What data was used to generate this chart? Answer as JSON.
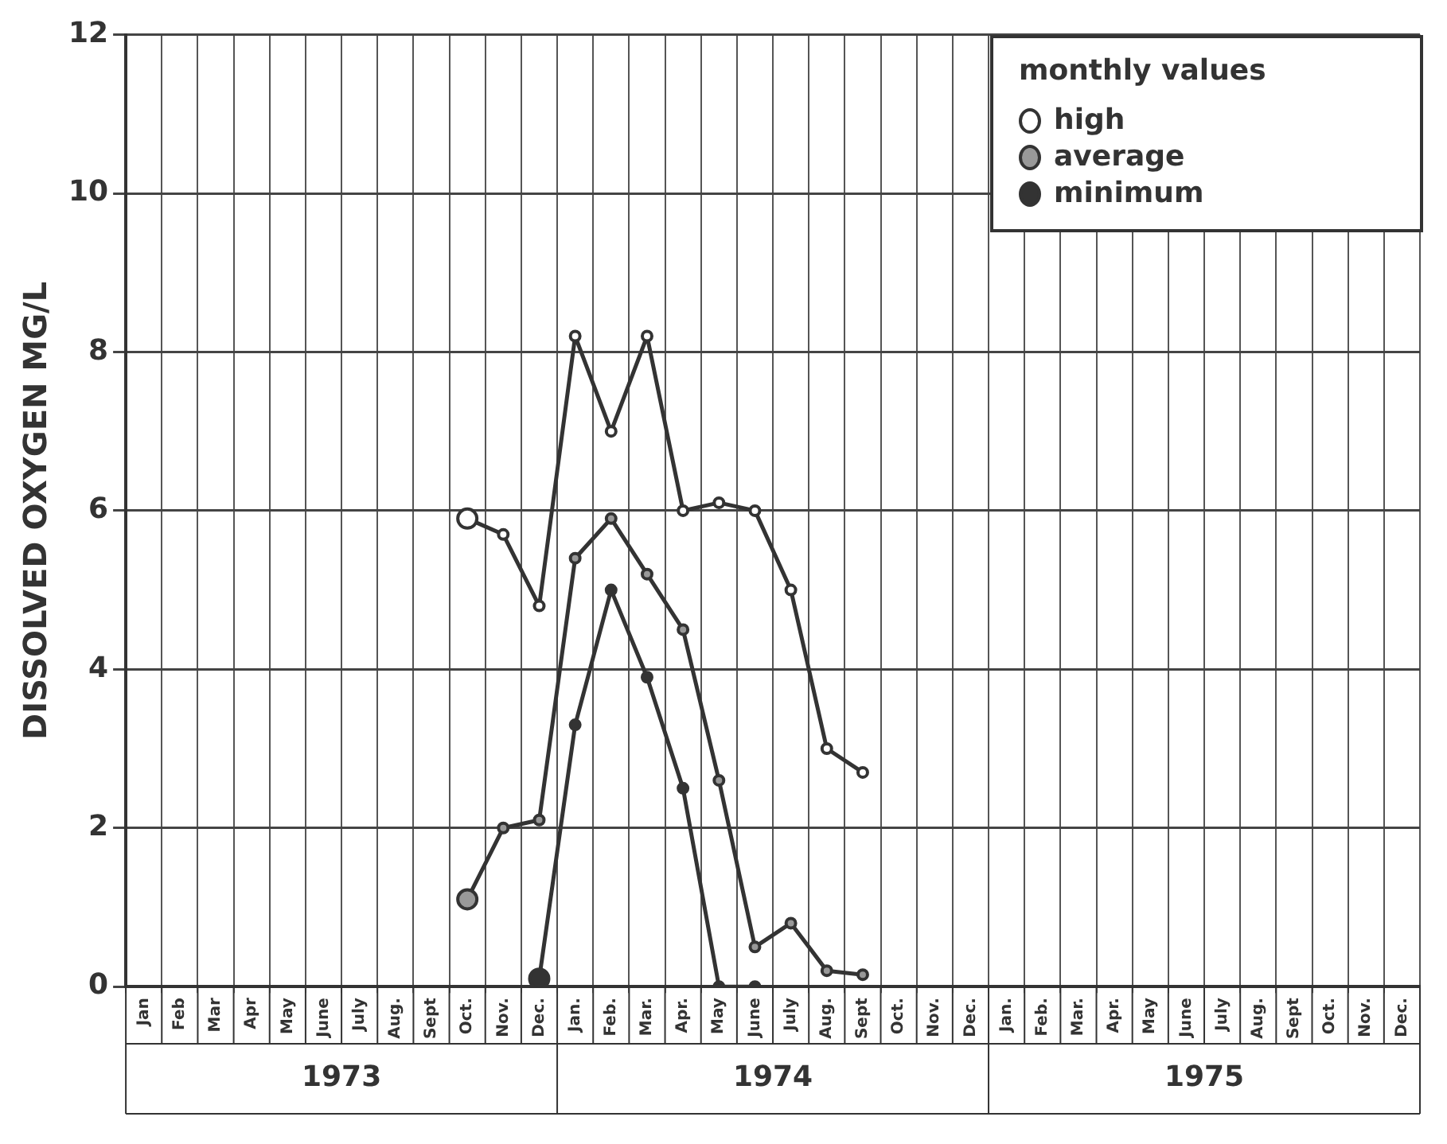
{
  "chart_data": {
    "type": "line",
    "ylabel": "DISSOLVED OXYGEN MG/L",
    "legend_title": "monthly values",
    "legend": "top right",
    "grid": true,
    "marker": "circle",
    "line_style": "solid",
    "categories": [
      "Jan",
      "Feb",
      "Mar",
      "Apr",
      "May",
      "June",
      "July",
      "Aug.",
      "Sept",
      "Oct.",
      "Nov.",
      "Dec.",
      "Jan.",
      "Feb.",
      "Mar.",
      "Apr.",
      "May",
      "June",
      "July",
      "Aug.",
      "Sept",
      "Oct.",
      "Nov.",
      "Dec.",
      "Jan.",
      "Feb.",
      "Mar.",
      "Apr.",
      "May",
      "June",
      "July",
      "Aug.",
      "Sept",
      "Oct.",
      "Nov.",
      "Dec."
    ],
    "ylim": [
      0,
      12
    ],
    "yticks": [
      0,
      2,
      4,
      6,
      8,
      10,
      12
    ],
    "annotations": [
      "1973",
      "1974",
      "1975"
    ],
    "series": [
      {
        "name": "high",
        "color": "#333333",
        "values": [
          null,
          null,
          null,
          null,
          null,
          null,
          null,
          null,
          null,
          5.9,
          5.7,
          4.8,
          8.2,
          7.0,
          8.2,
          6.0,
          6.1,
          6.0,
          5.0,
          3.0,
          2.7,
          null,
          null,
          null,
          null,
          null,
          null,
          null,
          null,
          null,
          null,
          null,
          null,
          null,
          null,
          null
        ]
      },
      {
        "name": "average",
        "color": "#333333",
        "values": [
          null,
          null,
          null,
          null,
          null,
          null,
          null,
          null,
          null,
          1.1,
          2.0,
          2.1,
          5.4,
          5.9,
          5.2,
          4.5,
          2.6,
          0.5,
          0.8,
          0.2,
          0.15,
          null,
          null,
          null,
          null,
          null,
          null,
          null,
          null,
          null,
          null,
          null,
          null,
          null,
          null,
          null
        ]
      },
      {
        "name": "minimum",
        "color": "#333333",
        "values": [
          null,
          null,
          null,
          null,
          null,
          null,
          null,
          null,
          null,
          null,
          null,
          0.1,
          3.3,
          5.0,
          3.9,
          2.5,
          0,
          0,
          null,
          null,
          null,
          null,
          null,
          null,
          null,
          null,
          null,
          null,
          null,
          null,
          null,
          null,
          null,
          null,
          null,
          null
        ]
      }
    ]
  }
}
